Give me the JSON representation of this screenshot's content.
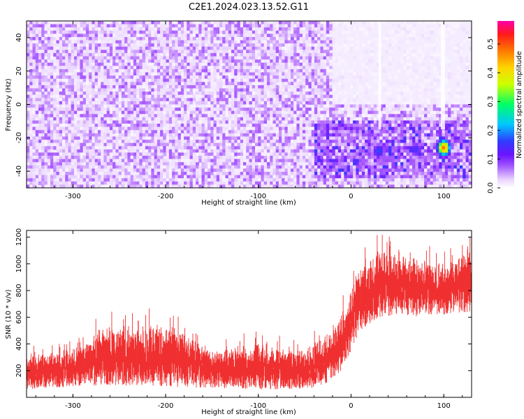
{
  "title": "C2E1.2024.023.13.52.G11",
  "chart_data": [
    {
      "type": "heatmap",
      "xlabel": "Height of straight line (km)",
      "ylabel": "Frequency (Hz)",
      "xlim": [
        -350,
        130
      ],
      "ylim": [
        -50,
        50
      ],
      "xticks": [
        "-300",
        "-200",
        "-100",
        "0",
        "100"
      ],
      "yticks": [
        "-40",
        "-20",
        "0",
        "20",
        "40"
      ],
      "colorbar": {
        "label": "Normalized spectral amplitude",
        "range": [
          0,
          0.58
        ],
        "ticks": [
          "0.0",
          "0.1",
          "0.2",
          "0.3",
          "0.4",
          "0.5"
        ],
        "colormap": [
          "#ffffff",
          "#e9d3ff",
          "#b46cff",
          "#7a1fff",
          "#2f3cff",
          "#00c8ff",
          "#00ff66",
          "#ccff00",
          "#ffd400",
          "#ff7a00",
          "#ff1a1a",
          "#ff00aa"
        ]
      },
      "annotations": {
        "dominant_amplitude_range": [
          0.03,
          0.12
        ],
        "hot_spots": [
          {
            "x": 100,
            "y": -26,
            "amplitude": 0.48
          },
          {
            "x": 30,
            "y": -28,
            "amplitude": 0.22
          },
          {
            "x": 70,
            "y": -27,
            "amplitude": 0.2
          }
        ],
        "low_amplitude_region": {
          "x": [
            -20,
            130
          ],
          "y": [
            0,
            50
          ]
        }
      }
    },
    {
      "type": "area",
      "xlabel": "Height of straight line (km)",
      "ylabel": "SNR (10 * v/v)",
      "xlim": [
        -350,
        130
      ],
      "ylim": [
        0,
        1250
      ],
      "xticks": [
        "-300",
        "-200",
        "-100",
        "0",
        "100"
      ],
      "yticks": [
        "200",
        "400",
        "600",
        "800",
        "1000",
        "1200"
      ],
      "color": "#f03030",
      "envelope": {
        "x": [
          -350,
          -300,
          -270,
          -200,
          -150,
          -100,
          -50,
          -30,
          -10,
          0,
          10,
          30,
          50,
          80,
          100,
          130
        ],
        "low": [
          60,
          80,
          90,
          80,
          70,
          60,
          60,
          90,
          200,
          350,
          500,
          600,
          620,
          600,
          620,
          640
        ],
        "high": [
          400,
          450,
          650,
          700,
          450,
          500,
          450,
          550,
          750,
          950,
          1100,
          1250,
          1200,
          1150,
          1100,
          1250
        ]
      }
    }
  ]
}
